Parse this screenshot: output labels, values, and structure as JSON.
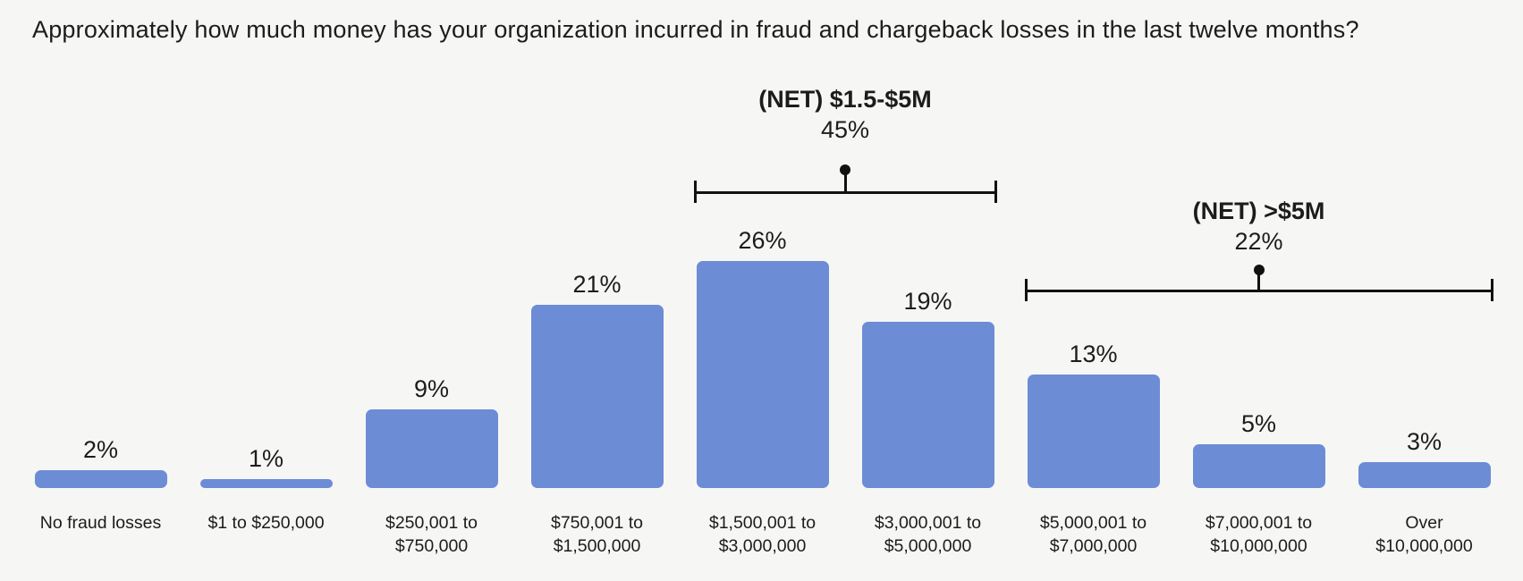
{
  "title": "Approximately how much money has your organization incurred in fraud and chargeback losses in the last twelve months?",
  "colors": {
    "background": "#f6f6f4",
    "bar": "#6d8cd6",
    "text": "#1c1c1c",
    "annotation": "#111111"
  },
  "chart_data": {
    "type": "bar",
    "title": "Approximately how much money has your organization incurred in fraud and chargeback losses in the last twelve months?",
    "unit": "%",
    "categories": [
      "No fraud losses",
      "$1 to $250,000",
      "$250,001 to $750,000",
      "$750,001 to $1,500,000",
      "$1,500,001 to $3,000,000",
      "$3,000,001 to $5,000,000",
      "$5,000,001 to $7,000,000",
      "$7,000,001 to $10,000,000",
      "Over $10,000,000"
    ],
    "category_label_lines": [
      [
        "No fraud losses"
      ],
      [
        "$1 to $250,000"
      ],
      [
        "$250,001 to",
        "$750,000"
      ],
      [
        "$750,001 to",
        "$1,500,000"
      ],
      [
        "$1,500,001 to",
        "$3,000,000"
      ],
      [
        "$3,000,001 to",
        "$5,000,000"
      ],
      [
        "$5,000,001 to",
        "$7,000,000"
      ],
      [
        "$7,000,001 to",
        "$10,000,000"
      ],
      [
        "Over",
        "$10,000,000"
      ]
    ],
    "values": [
      2,
      1,
      9,
      21,
      26,
      19,
      13,
      5,
      3
    ],
    "value_labels": [
      "2%",
      "1%",
      "9%",
      "21%",
      "26%",
      "19%",
      "13%",
      "5%",
      "3%"
    ],
    "xlabel": "",
    "ylabel": "",
    "value_axis_visible": false,
    "grid": false,
    "legend": false,
    "annotations": [
      {
        "label": "(NET) $1.5-$5M",
        "value": 45,
        "value_label": "45%",
        "from_category": "$1,500,001 to $3,000,000",
        "to_category": "$3,000,001 to $5,000,000",
        "from_index": 4,
        "to_index": 5
      },
      {
        "label": "(NET) >$5M",
        "value": 22,
        "value_label": "22%",
        "from_category": "$5,000,001 to $7,000,000",
        "to_category": "Over $10,000,000",
        "from_index": 6,
        "to_index": 8
      }
    ]
  }
}
